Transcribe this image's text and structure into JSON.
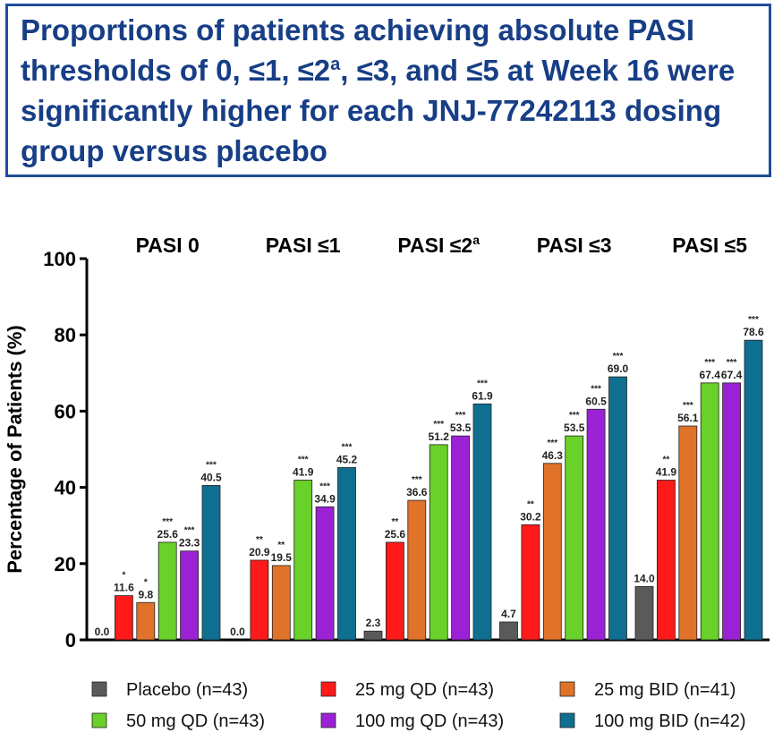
{
  "chart_data": {
    "type": "bar",
    "title": "Proportions of patients achieving absolute PASI thresholds of 0, ≤1, ≤2",
    "title_superscript": "a",
    "title_end": ", ≤3, and ≤5 at Week 16 were significantly higher for each JNJ-77242113 dosing group versus placebo",
    "y_label": "Percentage of Patients (%)",
    "categories": [
      "PASI 0",
      "PASI ≤1",
      "PASI ≤2",
      "PASI ≤3",
      "PASI ≤5"
    ],
    "category_superscripts": [
      null,
      null,
      "a",
      null,
      null
    ],
    "ylim": [
      0,
      100
    ],
    "yticks": [
      0,
      20,
      40,
      60,
      80,
      100
    ],
    "series": [
      {
        "name": "Placebo (n=43)",
        "color": "#5a5a5a",
        "values": [
          0.0,
          0.0,
          2.3,
          4.7,
          14.0
        ],
        "value_labels": [
          "0.0",
          "0.0",
          "2.3",
          "4.7",
          "14.0"
        ],
        "significance": [
          null,
          null,
          null,
          null,
          null
        ]
      },
      {
        "name": "25 mg QD (n=43)",
        "color": "#ff1a1a",
        "values": [
          11.6,
          20.9,
          25.6,
          30.2,
          41.9
        ],
        "value_labels": [
          "11.6",
          "20.9",
          "25.6",
          "30.2",
          "41.9"
        ],
        "significance": [
          "*",
          "**",
          "**",
          "**",
          "**"
        ]
      },
      {
        "name": "25 mg BID (n=41)",
        "color": "#e0722a",
        "values": [
          9.8,
          19.5,
          36.6,
          46.3,
          56.1
        ],
        "value_labels": [
          "9.8",
          "19.5",
          "36.6",
          "46.3",
          "56.1"
        ],
        "significance": [
          "*",
          "**",
          "***",
          "***",
          "***"
        ]
      },
      {
        "name": "50 mg QD (n=43)",
        "color": "#6ad02a",
        "values": [
          25.6,
          41.9,
          51.2,
          53.5,
          67.4
        ],
        "value_labels": [
          "25.6",
          "41.9",
          "51.2",
          "53.5",
          "67.4"
        ],
        "significance": [
          "***",
          "***",
          "***",
          "***",
          "***"
        ]
      },
      {
        "name": "100 mg QD (n=43)",
        "color": "#9a22d4",
        "values": [
          23.3,
          34.9,
          53.5,
          60.5,
          67.4
        ],
        "value_labels": [
          "23.3",
          "34.9",
          "53.5",
          "60.5",
          "67.4"
        ],
        "significance": [
          "***",
          "***",
          "***",
          "***",
          "***"
        ]
      },
      {
        "name": "100 mg BID (n=42)",
        "color": "#0f6f90",
        "values": [
          40.5,
          45.2,
          61.9,
          69.0,
          78.6
        ],
        "value_labels": [
          "40.5",
          "45.2",
          "61.9",
          "69.0",
          "78.6"
        ],
        "significance": [
          "***",
          "***",
          "***",
          "***",
          "***"
        ]
      }
    ]
  }
}
